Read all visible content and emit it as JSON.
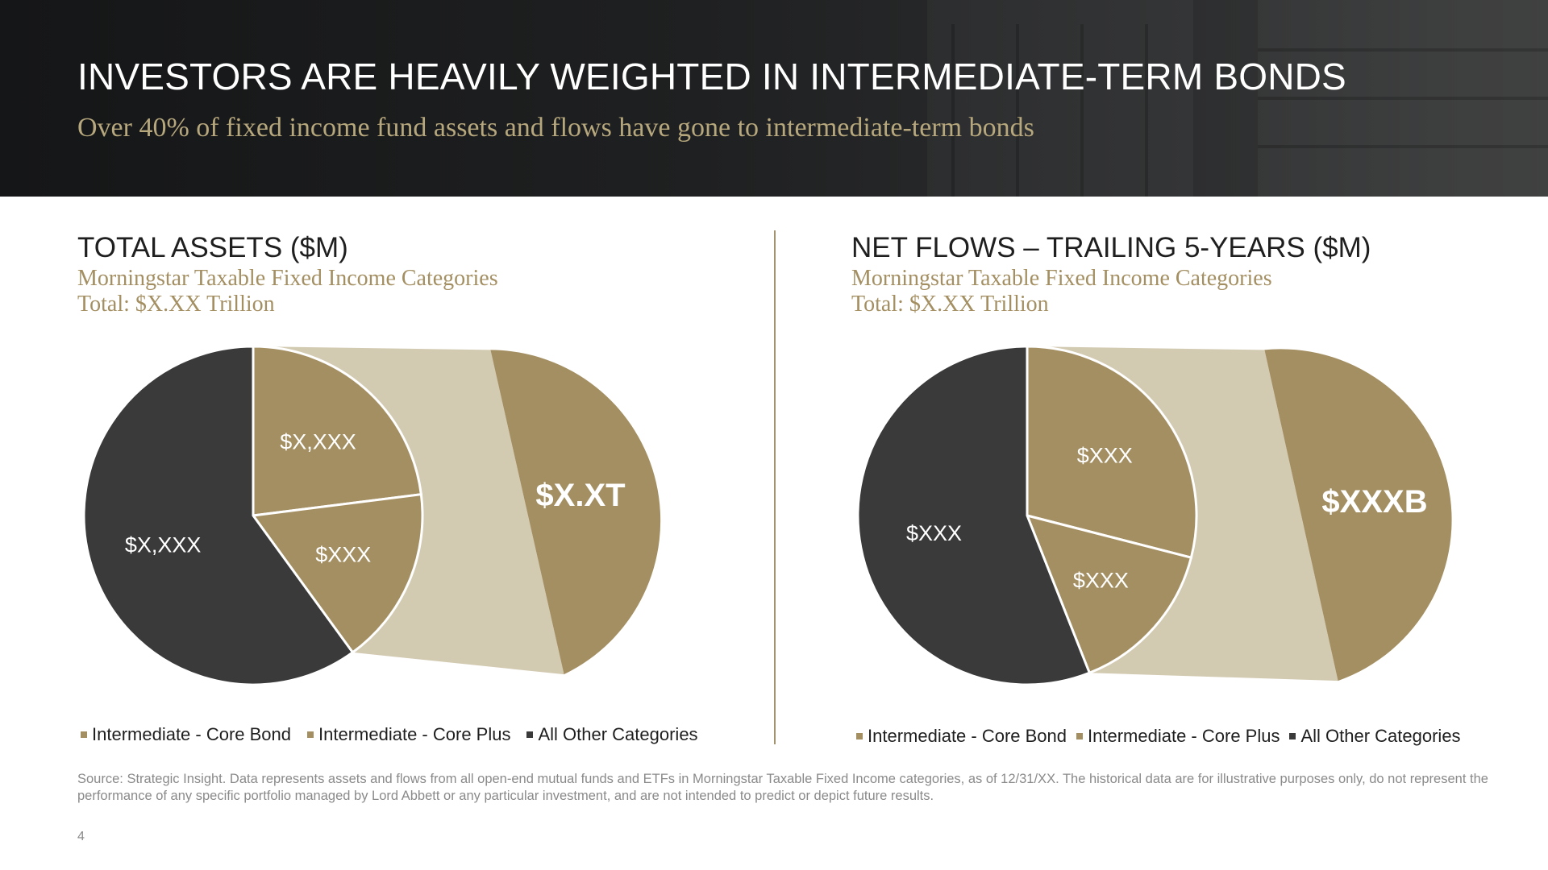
{
  "header": {
    "title": "INVESTORS ARE HEAVILY WEIGHTED IN INTERMEDIATE-TERM BONDS",
    "subtitle": "Over 40% of fixed income fund assets and flows have gone to intermediate-term bonds"
  },
  "colors": {
    "core_bond": "#a48f62",
    "core_plus": "#a48f62",
    "other": "#3a3a3a",
    "bridge": "#d3cab2",
    "header_bg": "#1f2021",
    "accent_text": "#b6a77d"
  },
  "chart_data": [
    {
      "type": "pie",
      "variant": "pie-of-pie",
      "title": "TOTAL ASSETS ($M)",
      "subtitle_lines": [
        "Morningstar Taxable Fixed Income Categories",
        "Total: $X.XX Trillion"
      ],
      "slices": [
        {
          "name": "Intermediate - Core Bond",
          "share": 0.23,
          "label": "$X,XXX"
        },
        {
          "name": "Intermediate - Core Plus",
          "share": 0.17,
          "label": "$XXX"
        },
        {
          "name": "All Other Categories",
          "share": 0.6,
          "label": "$X,XXX"
        }
      ],
      "secondary": {
        "share": 0.4,
        "label": "$X.XT"
      },
      "legend": [
        "Intermediate - Core Bond",
        "Intermediate - Core Plus",
        "All Other Categories"
      ],
      "legend_placement": "bottom"
    },
    {
      "type": "pie",
      "variant": "pie-of-pie",
      "title": "NET FLOWS – TRAILING 5-YEARS ($M)",
      "subtitle_lines": [
        "Morningstar Taxable Fixed Income Categories",
        "Total: $X.XX Trillion"
      ],
      "slices": [
        {
          "name": "Intermediate - Core Bond",
          "share": 0.29,
          "label": "$XXX"
        },
        {
          "name": "Intermediate - Core Plus",
          "share": 0.15,
          "label": "$XXX"
        },
        {
          "name": "All Other Categories",
          "share": 0.56,
          "label": "$XXX"
        }
      ],
      "secondary": {
        "share": 0.44,
        "label": "$XXXB"
      },
      "legend": [
        "Intermediate - Core Bond",
        "Intermediate - Core Plus",
        "All Other Categories"
      ],
      "legend_placement": "bottom"
    }
  ],
  "footer": {
    "source": "Source: Strategic Insight. Data represents assets and flows from all open-end mutual funds and ETFs in Morningstar Taxable Fixed Income categories, as of 12/31/XX. The historical data are for illustrative purposes only, do not represent the performance of any specific portfolio managed by Lord Abbett or any particular investment, and are not intended to predict or depict future results.",
    "page_number": "4"
  }
}
